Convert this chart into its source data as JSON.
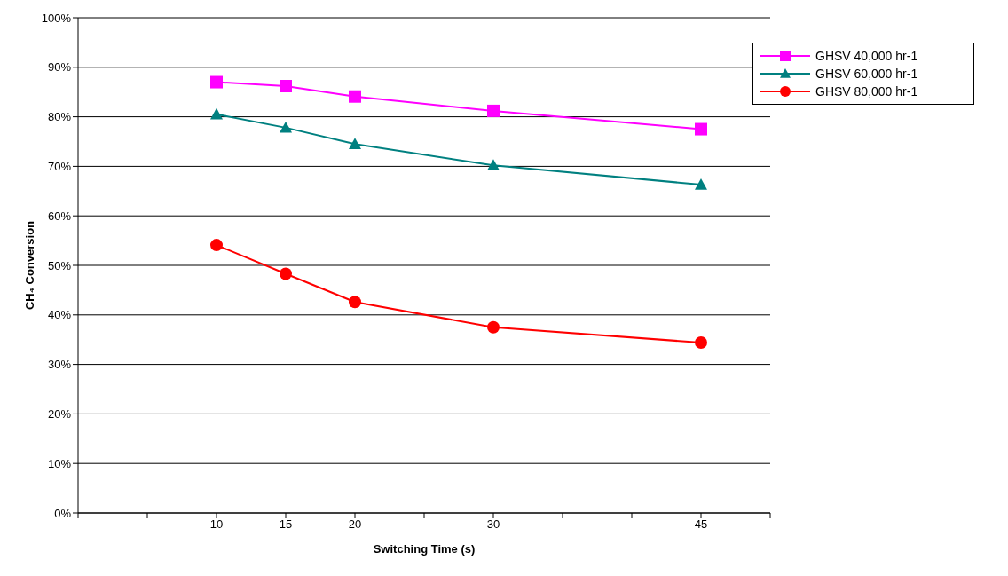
{
  "chart_data": {
    "type": "line",
    "xlabel": "Switching Time (s)",
    "ylabel": "CH₄ Conversion",
    "xlim": [
      0,
      50
    ],
    "xticks": [
      {
        "value": 0,
        "label": null
      },
      {
        "value": 5,
        "label": null
      },
      10,
      15,
      20,
      {
        "value": 25,
        "label": null
      },
      30,
      {
        "value": 35,
        "label": null
      },
      {
        "value": 40,
        "label": null
      },
      45,
      {
        "value": 50,
        "label": null
      }
    ],
    "ylim": [
      0,
      100
    ],
    "yticks": [
      {
        "value": 0,
        "label": "0%"
      },
      {
        "value": 10,
        "label": "10%"
      },
      {
        "value": 20,
        "label": "20%"
      },
      {
        "value": 30,
        "label": "30%"
      },
      {
        "value": 40,
        "label": "40%"
      },
      {
        "value": 50,
        "label": "50%"
      },
      {
        "value": 60,
        "label": "60%"
      },
      {
        "value": 70,
        "label": "70%"
      },
      {
        "value": 80,
        "label": "80%"
      },
      {
        "value": 90,
        "label": "90%"
      },
      {
        "value": 100,
        "label": "100%"
      }
    ],
    "grid": "y",
    "legend": "top right",
    "line_style": "solid",
    "x": [
      10,
      15,
      20,
      30,
      45
    ],
    "series": [
      {
        "name": "GHSV 40,000 hr-1",
        "color": "#ff00ff",
        "marker": "square",
        "values": [
          87,
          86.2,
          84.1,
          81.2,
          77.5
        ]
      },
      {
        "name": "GHSV 60,000 hr-1",
        "color": "#008080",
        "marker": "triangle",
        "values": [
          80.5,
          77.8,
          74.5,
          70.2,
          66.3
        ]
      },
      {
        "name": "GHSV 80,000 hr-1",
        "color": "#ff0000",
        "marker": "circle",
        "values": [
          54.1,
          48.3,
          42.6,
          37.5,
          34.4
        ]
      }
    ]
  }
}
